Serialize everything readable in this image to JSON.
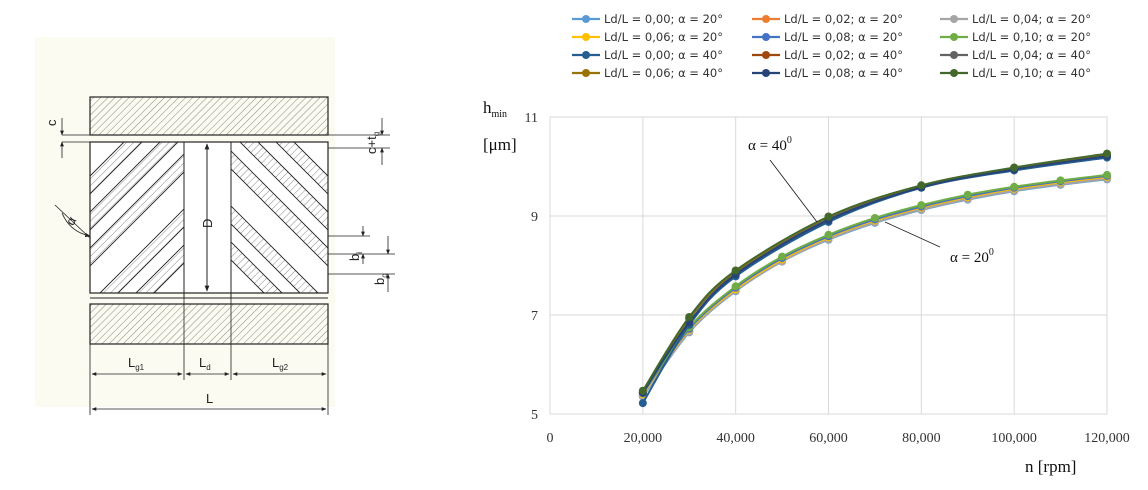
{
  "diagram": {
    "labels": {
      "c": "c",
      "c_tg": "c+t",
      "c_tg_sub": "g",
      "alpha": "α",
      "D": "D",
      "bi": "b",
      "bi_sub": "i",
      "bg": "b",
      "bg_sub": "g",
      "Lg1": "L",
      "Lg1_sub": "g1",
      "Ld": "L",
      "Ld_sub": "d",
      "Lg2": "L",
      "Lg2_sub": "g2",
      "L": "L"
    }
  },
  "chart_data": {
    "type": "line",
    "ylabel_main": "h",
    "ylabel_sub": "min",
    "ylabel_unit": "[μm]",
    "xlabel": "n [rpm]",
    "xlim": [
      0,
      120000
    ],
    "ylim": [
      5,
      11
    ],
    "xticks": [
      "0",
      "20,000",
      "40,000",
      "60,000",
      "80,000",
      "100,000",
      "120,000"
    ],
    "yticks": [
      "5",
      "7",
      "9",
      "11"
    ],
    "grid": true,
    "legend_position": "top",
    "annotations": [
      {
        "text": "α = 40",
        "sup": "0"
      },
      {
        "text": "α = 20",
        "sup": "0"
      }
    ],
    "series": [
      {
        "name": "Ld/L = 0,00; α = 20°",
        "color": "#5b9bd5",
        "x": [
          20000,
          30000,
          40000,
          50000,
          60000,
          70000,
          80000,
          90000,
          100000,
          110000,
          120000
        ],
        "values": [
          5.35,
          6.65,
          7.48,
          8.08,
          8.52,
          8.86,
          9.12,
          9.33,
          9.5,
          9.63,
          9.74
        ]
      },
      {
        "name": "Ld/L = 0,02; α = 20°",
        "color": "#ed7d31",
        "x": [
          20000,
          30000,
          40000,
          50000,
          60000,
          70000,
          80000,
          90000,
          100000,
          110000,
          120000
        ],
        "values": [
          5.38,
          6.68,
          7.5,
          8.1,
          8.55,
          8.89,
          9.15,
          9.36,
          9.53,
          9.66,
          9.77
        ]
      },
      {
        "name": "Ld/L = 0,04; α = 20°",
        "color": "#a5a5a5",
        "x": [
          20000,
          30000,
          40000,
          50000,
          60000,
          70000,
          80000,
          90000,
          100000,
          110000,
          120000
        ],
        "values": [
          5.36,
          6.66,
          7.49,
          8.08,
          8.53,
          8.87,
          9.13,
          9.34,
          9.51,
          9.64,
          9.75
        ]
      },
      {
        "name": "Ld/L = 0,06; α = 20°",
        "color": "#ffc000",
        "x": [
          20000,
          30000,
          40000,
          50000,
          60000,
          70000,
          80000,
          90000,
          100000,
          110000,
          120000
        ],
        "values": [
          5.4,
          6.7,
          7.52,
          8.12,
          8.57,
          8.91,
          9.17,
          9.38,
          9.55,
          9.68,
          9.79
        ]
      },
      {
        "name": "Ld/L = 0,08; α = 20°",
        "color": "#4472c4",
        "x": [
          20000,
          30000,
          40000,
          50000,
          60000,
          70000,
          80000,
          90000,
          100000,
          110000,
          120000
        ],
        "values": [
          5.42,
          6.72,
          7.55,
          8.15,
          8.59,
          8.93,
          9.19,
          9.4,
          9.57,
          9.7,
          9.81
        ]
      },
      {
        "name": "Ld/L = 0,10; α = 20°",
        "color": "#70ad47",
        "x": [
          20000,
          30000,
          40000,
          50000,
          60000,
          70000,
          80000,
          90000,
          100000,
          110000,
          120000
        ],
        "values": [
          5.44,
          6.75,
          7.58,
          8.18,
          8.62,
          8.96,
          9.22,
          9.43,
          9.59,
          9.72,
          9.83
        ]
      },
      {
        "name": "Ld/L = 0,00; α = 40°",
        "color": "#255e91",
        "x": [
          20000,
          30000,
          40000,
          60000,
          80000,
          100000,
          120000
        ],
        "values": [
          5.22,
          6.8,
          7.78,
          8.88,
          9.57,
          9.92,
          10.18
        ]
      },
      {
        "name": "Ld/L = 0,02; α = 40°",
        "color": "#9e480e",
        "x": [
          20000,
          30000,
          40000,
          60000,
          80000,
          100000,
          120000
        ],
        "values": [
          5.45,
          6.93,
          7.87,
          8.97,
          9.61,
          9.97,
          10.24
        ]
      },
      {
        "name": "Ld/L = 0,04; α = 40°",
        "color": "#636363",
        "x": [
          20000,
          30000,
          40000,
          60000,
          80000,
          100000,
          120000
        ],
        "values": [
          5.44,
          6.92,
          7.86,
          8.96,
          9.6,
          9.96,
          10.23
        ]
      },
      {
        "name": "Ld/L = 0,06; α = 40°",
        "color": "#997300",
        "x": [
          20000,
          30000,
          40000,
          60000,
          80000,
          100000,
          120000
        ],
        "values": [
          5.45,
          6.94,
          7.88,
          8.98,
          9.61,
          9.97,
          10.24
        ]
      },
      {
        "name": "Ld/L = 0,08; α = 40°",
        "color": "#264478",
        "x": [
          20000,
          30000,
          40000,
          60000,
          80000,
          100000,
          120000
        ],
        "values": [
          5.43,
          6.85,
          7.82,
          8.92,
          9.58,
          9.94,
          10.21
        ]
      },
      {
        "name": "Ld/L = 0,10; α = 40°",
        "color": "#43682b",
        "x": [
          20000,
          30000,
          40000,
          60000,
          80000,
          100000,
          120000
        ],
        "values": [
          5.47,
          6.96,
          7.9,
          8.99,
          9.62,
          9.98,
          10.26
        ]
      }
    ]
  }
}
